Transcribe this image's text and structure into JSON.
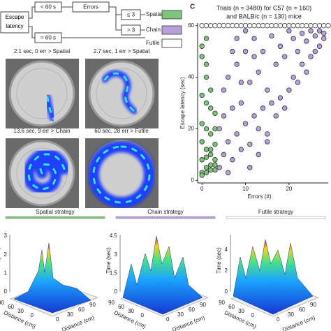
{
  "flowchart": {
    "start": "Escape latency",
    "under": "< 60 s",
    "errors": "Errors",
    "low": "≤ 3",
    "high": "> 3",
    "timeout": "= 60 s"
  },
  "heatmaps": [
    {
      "label": "2.1 sec, 0 err > Spatial"
    },
    {
      "label": "2.7 sec, 1 err > Spatial"
    },
    {
      "label": "13.6 sec, 9 err > Chain"
    },
    {
      "label": "60 sec, 28 err > Futile"
    }
  ],
  "chart_data": {
    "type": "scatter",
    "panel_label": "C",
    "title": "Trials (n = 3480) for C57 (n = 160)",
    "subtitle": "and BALB/c (n = 130) mice",
    "x_label": "Errors (#)",
    "y_label": "Escape latency (sec)",
    "xlim": [
      -1,
      29
    ],
    "ylim": [
      -1,
      61
    ],
    "xticks": [
      0,
      10,
      20
    ],
    "yticks": [
      0,
      20,
      40,
      60
    ],
    "series": [
      {
        "name": "Spatial",
        "color": "#7cc47a",
        "x": [
          0,
          0,
          0,
          0,
          1,
          1,
          1,
          1,
          2,
          2,
          2,
          3,
          3,
          3,
          0,
          1,
          2,
          3,
          0,
          1,
          2,
          0,
          1,
          2,
          3,
          0,
          1,
          2,
          3,
          1
        ],
        "values": [
          3,
          8,
          15,
          22,
          5,
          12,
          30,
          45,
          6,
          18,
          10,
          4,
          14,
          26,
          52,
          40,
          35,
          20,
          33,
          9,
          28,
          48,
          55,
          12,
          8,
          2,
          3,
          4,
          6,
          20
        ]
      },
      {
        "name": "Chain",
        "color": "#b7a0d9",
        "x": [
          4,
          4,
          5,
          5,
          6,
          6,
          7,
          7,
          8,
          8,
          9,
          9,
          10,
          10,
          11,
          11,
          12,
          12,
          13,
          13,
          14,
          14,
          15,
          15,
          16,
          16,
          17,
          17,
          18,
          18,
          19,
          19,
          20,
          20,
          21,
          21,
          22,
          22,
          23,
          23,
          24,
          24,
          25,
          25,
          26,
          26,
          27,
          27,
          28,
          28,
          5,
          7,
          9,
          11,
          13,
          15,
          6,
          8,
          10,
          12
        ],
        "values": [
          5,
          20,
          10,
          35,
          15,
          40,
          8,
          28,
          18,
          45,
          12,
          30,
          22,
          50,
          14,
          38,
          25,
          55,
          20,
          42,
          28,
          50,
          18,
          35,
          30,
          56,
          25,
          45,
          32,
          52,
          28,
          48,
          35,
          58,
          40,
          55,
          38,
          50,
          45,
          57,
          42,
          54,
          48,
          58,
          50,
          56,
          52,
          58,
          55,
          57,
          25,
          50,
          38,
          5,
          10,
          15,
          3,
          55,
          58,
          48
        ]
      },
      {
        "name": "Futile",
        "color": "#ffffff",
        "x": [
          0,
          1,
          2,
          3,
          4,
          5,
          6,
          7,
          8,
          9,
          10,
          11,
          12,
          13,
          14,
          15,
          16,
          17,
          18,
          19,
          20,
          21,
          22,
          23,
          24,
          25,
          26,
          27,
          28,
          29
        ],
        "values": [
          60,
          60,
          60,
          60,
          60,
          60,
          60,
          60,
          60,
          60,
          60,
          60,
          60,
          60,
          60,
          60,
          60,
          60,
          60,
          60,
          60,
          60,
          60,
          60,
          60,
          60,
          60,
          60,
          60,
          60
        ]
      }
    ]
  },
  "surfaces": [
    {
      "title": "Spatial strategy",
      "color": "#7cc47a",
      "z_label": "Time (sec)",
      "z_ticks": [
        "0",
        "1",
        "2",
        "3"
      ],
      "distance_label": "Distance (cm)",
      "left_ticks": [
        "90",
        "60",
        "30",
        "0"
      ],
      "right_ticks": [
        "0",
        "30",
        "60",
        "90"
      ]
    },
    {
      "title": "Chain strategy",
      "color": "#b7a0d9",
      "z_label": "Time (sec)",
      "z_ticks": [
        "0",
        "1.5",
        "3",
        "4.5"
      ],
      "distance_label": "Distance (cm)",
      "left_ticks": [
        "90",
        "60",
        "30",
        "0"
      ],
      "right_ticks": [
        "0",
        "30",
        "60",
        "90"
      ]
    },
    {
      "title": "Futile strategy",
      "color": "#ffffff",
      "z_label": "Time (sec)",
      "z_ticks": [
        "0",
        "2",
        "4"
      ],
      "distance_label": "Distance (cm)",
      "left_ticks": [
        "90",
        "60",
        "30",
        "0"
      ],
      "right_ticks": [
        "0",
        "30",
        "60",
        "90"
      ]
    }
  ]
}
